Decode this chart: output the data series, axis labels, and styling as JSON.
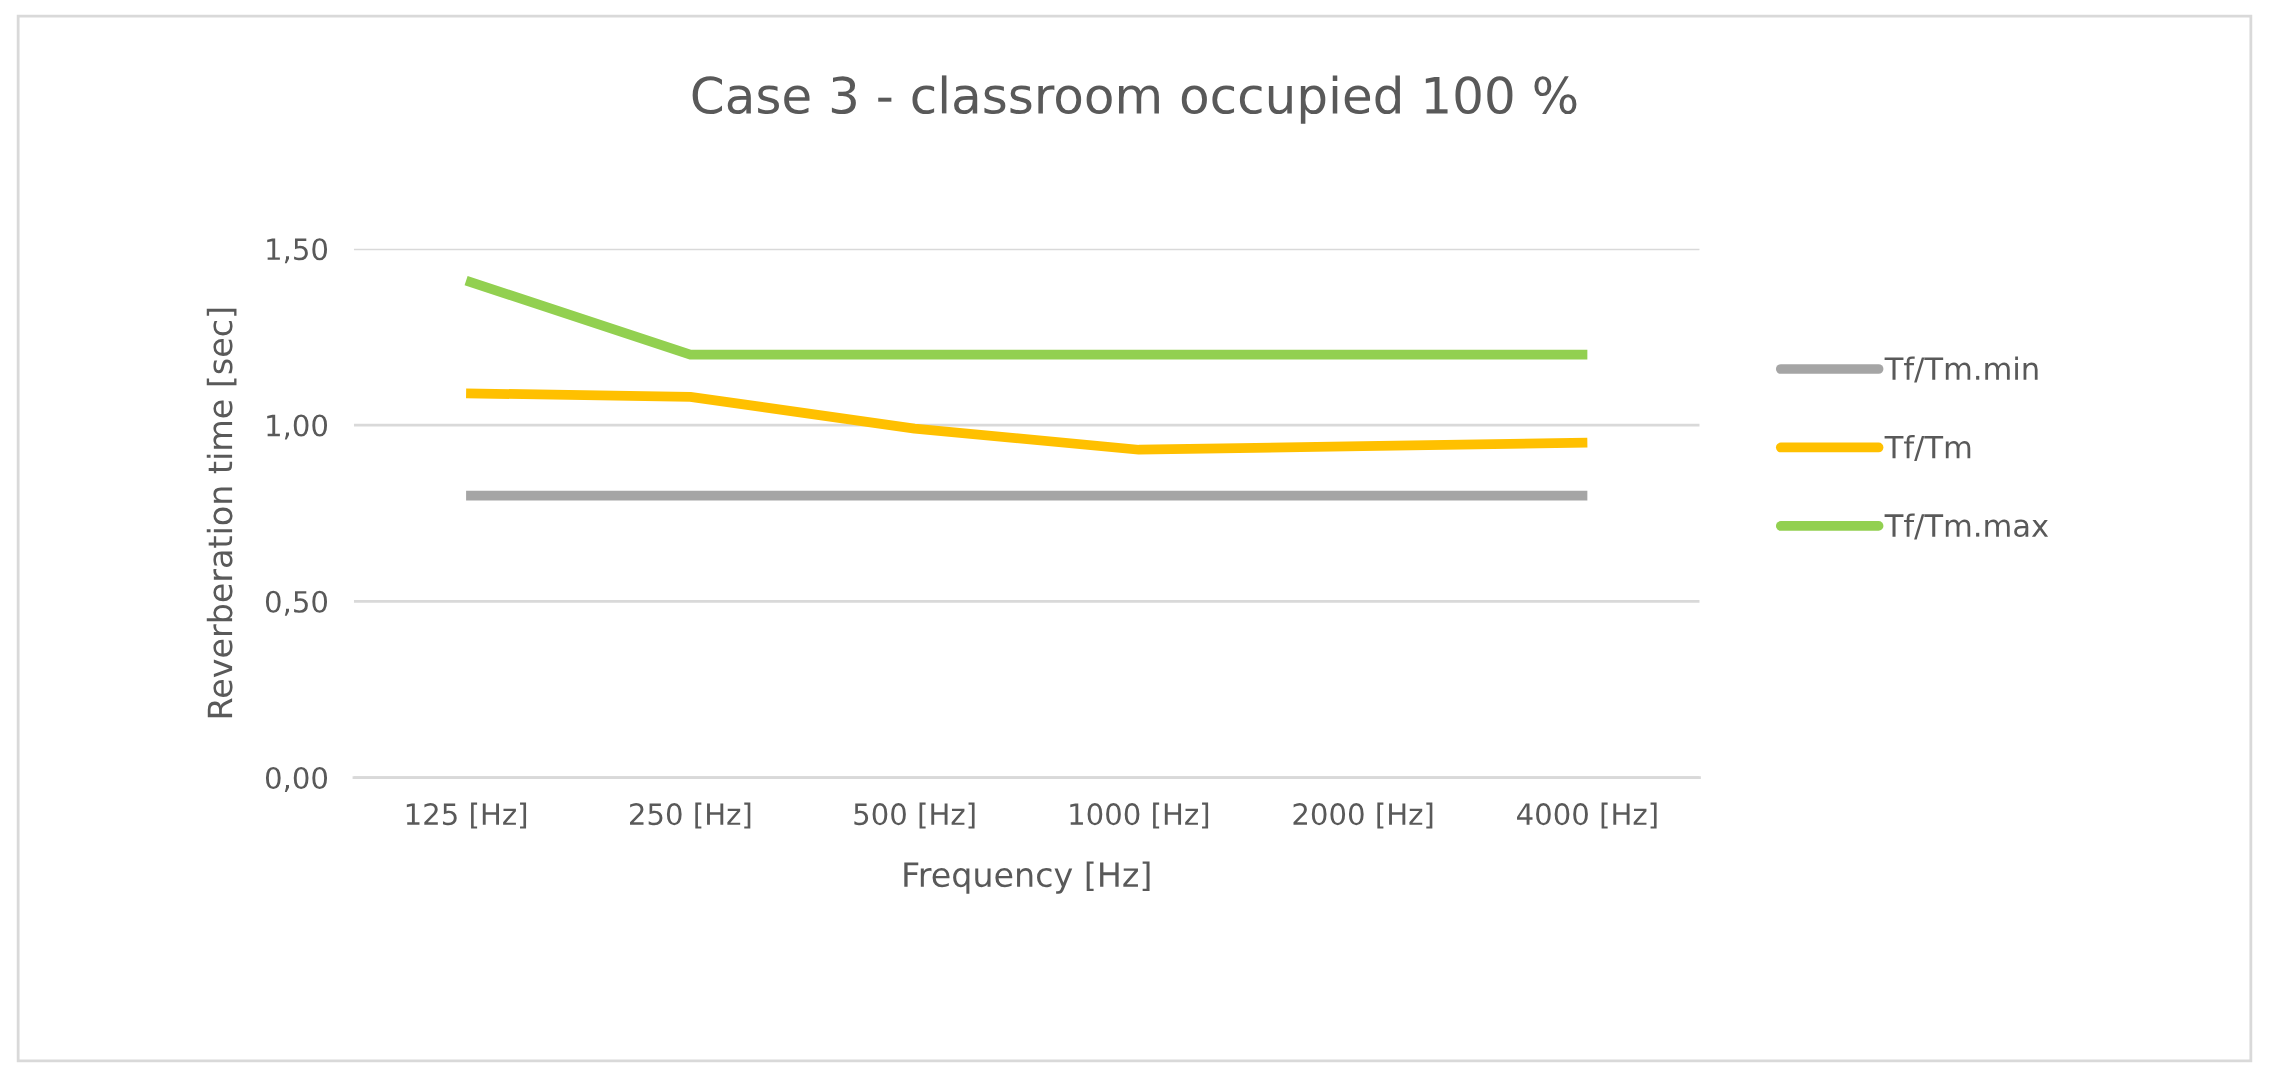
{
  "chart_data": {
    "type": "line",
    "title": "Case 3 - classroom occupied 100 %",
    "xlabel": "Frequency [Hz]",
    "ylabel": "Reverberation time [sec]",
    "categories": [
      "125 [Hz]",
      "250 [Hz]",
      "500 [Hz]",
      "1000 [Hz]",
      "2000 [Hz]",
      "4000 [Hz]"
    ],
    "series": [
      {
        "name": "Tf/Tm.min",
        "color": "#a5a5a5",
        "values": [
          0.8,
          0.8,
          0.8,
          0.8,
          0.8,
          0.8
        ]
      },
      {
        "name": "Tf/Tm",
        "color": "#ffc000",
        "values": [
          1.09,
          1.08,
          0.99,
          0.93,
          0.94,
          0.95
        ]
      },
      {
        "name": "Tf/Tm.max",
        "color": "#92d050",
        "values": [
          1.41,
          1.2,
          1.2,
          1.2,
          1.2,
          1.2
        ]
      }
    ],
    "ylim": [
      0,
      1.5
    ],
    "yticks": [
      {
        "value": 0,
        "label": "0,00"
      },
      {
        "value": 0.5,
        "label": "0,50"
      },
      {
        "value": 1.0,
        "label": "1,00"
      },
      {
        "value": 1.5,
        "label": "1,50"
      }
    ],
    "grid": "y",
    "legend": "right",
    "marker": "none",
    "line_style": "solid"
  }
}
